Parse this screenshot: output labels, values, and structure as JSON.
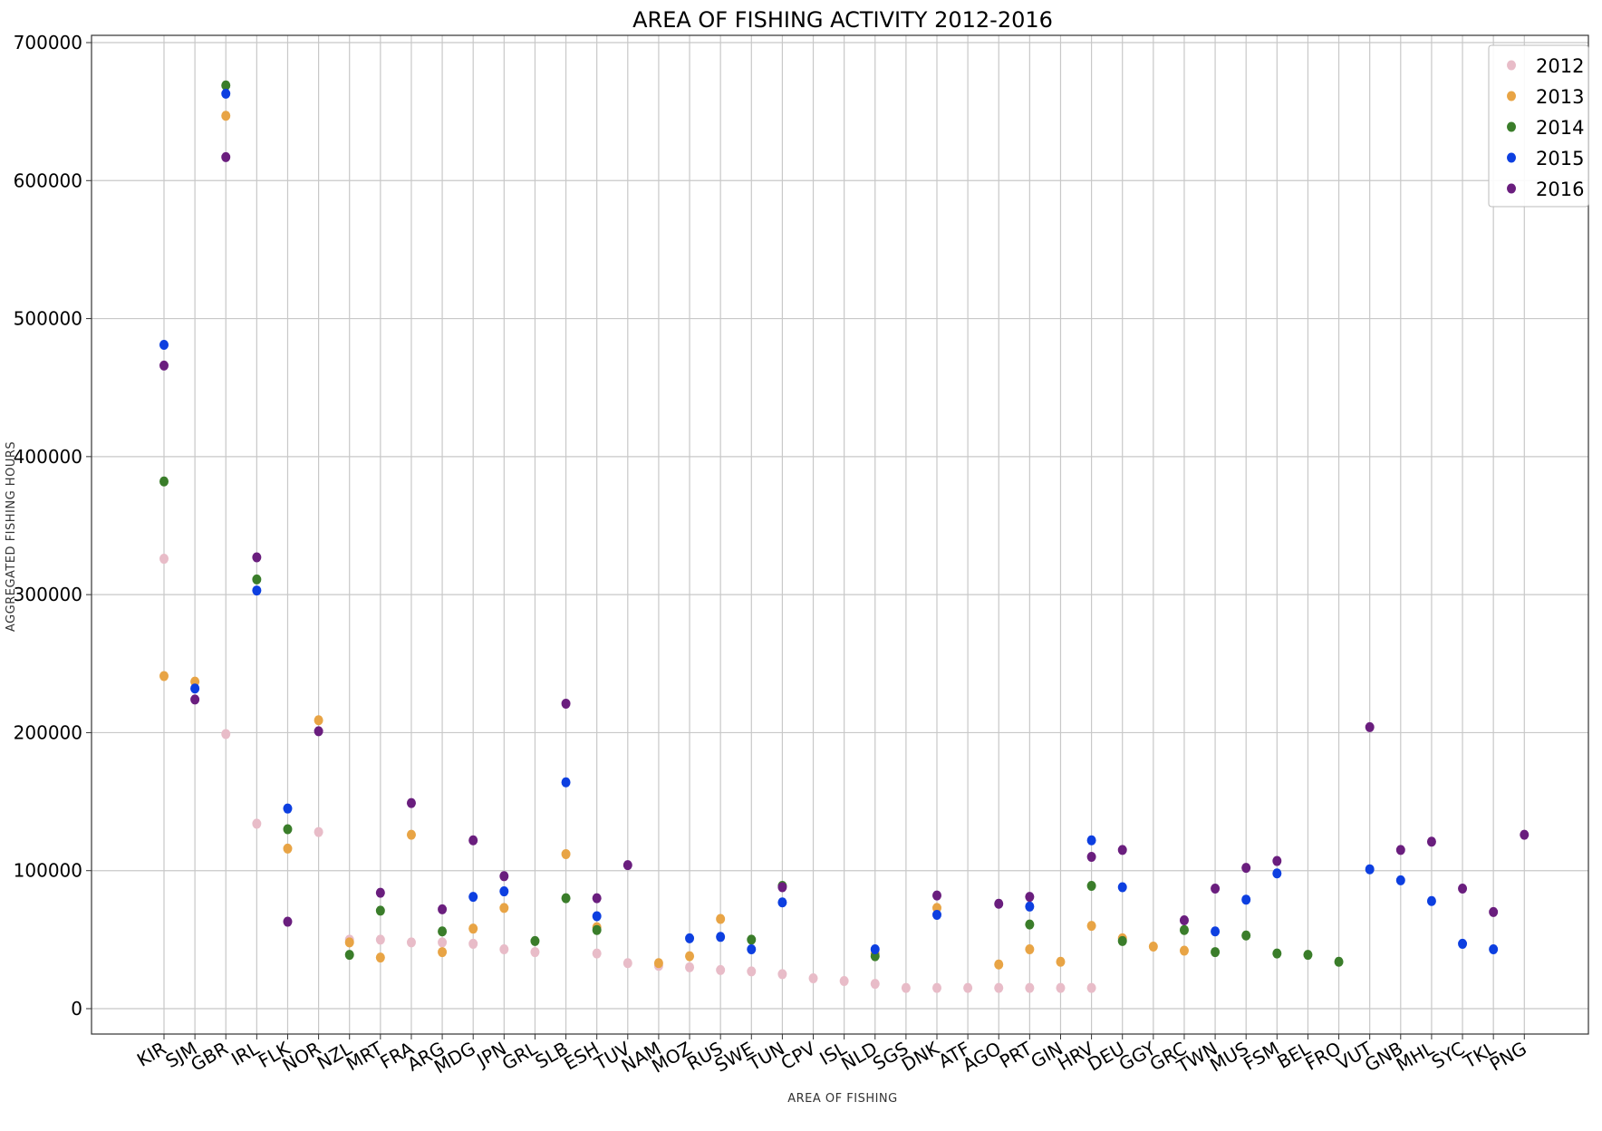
{
  "chart_data": {
    "type": "scatter",
    "title": "AREA OF FISHING ACTIVITY 2012-2016",
    "xlabel": "AREA OF FISHING",
    "ylabel": "AGGREGATED FISHING HOURS",
    "ylim": [
      -20000,
      705000
    ],
    "yticks": [
      0,
      100000,
      200000,
      300000,
      400000,
      500000,
      600000,
      700000
    ],
    "ytick_labels": [
      "0",
      "100000",
      "200000",
      "300000",
      "400000",
      "500000",
      "600000",
      "700000"
    ],
    "grid": true,
    "legend_position": "top-right",
    "categories": [
      "KIR",
      "SJM",
      "GBR",
      "IRL",
      "FLK",
      "NOR",
      "NZL",
      "MRT",
      "FRA",
      "ARG",
      "MDG",
      "JPN",
      "GRL",
      "SLB",
      "ESH",
      "TUV",
      "NAM",
      "MOZ",
      "RUS",
      "SWE",
      "TUN",
      "CPV",
      "ISL",
      "NLD",
      "SGS",
      "DNK",
      "ATF",
      "AGO",
      "PRT",
      "GIN",
      "HRV",
      "DEU",
      "GGY",
      "GRC",
      "TWN",
      "MUS",
      "FSM",
      "BEL",
      "FRO",
      "VUT",
      "GNB",
      "MHL",
      "SYC",
      "TKL",
      "PNG"
    ],
    "series": [
      {
        "name": "2012",
        "color": "#e8bcc8",
        "values": [
          326000,
          null,
          199000,
          134000,
          null,
          128000,
          50000,
          50000,
          48000,
          48000,
          47000,
          43000,
          41000,
          null,
          40000,
          33000,
          31000,
          30000,
          28000,
          27000,
          25000,
          22000,
          20000,
          18000,
          15000,
          15000,
          15000,
          15000,
          15000,
          15000,
          15000,
          null,
          null,
          null,
          null,
          null,
          null,
          null,
          null,
          null,
          null,
          null,
          null,
          null,
          null
        ]
      },
      {
        "name": "2013",
        "color": "#e8a445",
        "values": [
          241000,
          237000,
          647000,
          null,
          116000,
          209000,
          48000,
          37000,
          126000,
          41000,
          58000,
          73000,
          null,
          112000,
          59000,
          null,
          33000,
          38000,
          65000,
          null,
          null,
          null,
          null,
          40000,
          null,
          73000,
          null,
          32000,
          43000,
          34000,
          60000,
          51000,
          45000,
          42000,
          null,
          null,
          null,
          null,
          null,
          null,
          null,
          null,
          null,
          null,
          null
        ]
      },
      {
        "name": "2014",
        "color": "#3a7d2a",
        "values": [
          382000,
          null,
          669000,
          311000,
          130000,
          null,
          39000,
          71000,
          null,
          56000,
          null,
          null,
          49000,
          80000,
          57000,
          null,
          null,
          null,
          null,
          50000,
          89000,
          null,
          null,
          38000,
          null,
          null,
          null,
          null,
          61000,
          null,
          89000,
          49000,
          null,
          57000,
          41000,
          53000,
          40000,
          39000,
          34000,
          null,
          null,
          null,
          null,
          null,
          null
        ]
      },
      {
        "name": "2015",
        "color": "#0d3fe0",
        "values": [
          481000,
          232000,
          663000,
          303000,
          145000,
          null,
          null,
          null,
          null,
          null,
          81000,
          85000,
          null,
          164000,
          67000,
          null,
          null,
          51000,
          52000,
          43000,
          77000,
          null,
          null,
          43000,
          null,
          68000,
          null,
          null,
          74000,
          null,
          122000,
          88000,
          null,
          null,
          56000,
          79000,
          98000,
          null,
          null,
          101000,
          93000,
          78000,
          47000,
          43000,
          null
        ]
      },
      {
        "name": "2016",
        "color": "#6a1e7e",
        "values": [
          466000,
          224000,
          617000,
          327000,
          63000,
          201000,
          null,
          84000,
          149000,
          72000,
          122000,
          96000,
          null,
          221000,
          80000,
          104000,
          null,
          null,
          null,
          null,
          88000,
          null,
          null,
          null,
          null,
          82000,
          null,
          76000,
          81000,
          null,
          110000,
          115000,
          null,
          64000,
          87000,
          102000,
          107000,
          null,
          null,
          204000,
          115000,
          121000,
          87000,
          70000,
          126000
        ]
      }
    ]
  }
}
